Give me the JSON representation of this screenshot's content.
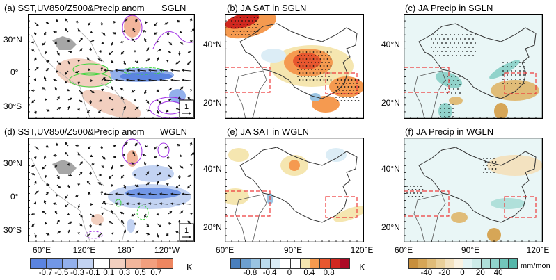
{
  "chart_data": [
    {
      "id": "a",
      "type": "heatmap",
      "title": "(a) SST,UV850/Z500&Precip anom",
      "tag": "SGLN",
      "ytick_labels": [
        "30°N",
        "0°",
        "30°S"
      ],
      "xtick_labels": [
        "60°E",
        "120°E",
        "180°",
        "120°W"
      ],
      "reference_vector": "1",
      "layers": [
        "SST anomaly (shaded)",
        "UV850 wind anomaly (vectors)",
        "Z500 anomaly (purple contours)",
        "Precip anomaly (green contours)"
      ],
      "features": {
        "warm_sst": [
          "Maritime Continent",
          "South Pacific convergence zone",
          "Northwest Pacific ~40N,170E"
        ],
        "cold_sst": [
          "Central-eastern equatorial Pacific"
        ],
        "easterly_wind_anomaly": "equatorial western Pacific"
      }
    },
    {
      "id": "b",
      "type": "heatmap",
      "title": "(b) JA SAT in SGLN",
      "ytick_labels": [
        "40°N",
        "20°N"
      ],
      "xtick_labels": [
        "60°E",
        "90°E",
        "120°E"
      ],
      "boxes": [
        {
          "lon": [
            60,
            80
          ],
          "lat": [
            20,
            35
          ]
        },
        {
          "lon": [
            105,
            122
          ],
          "lat": [
            27,
            34
          ]
        }
      ],
      "features": {
        "warm": [
          "Mongolia-NW China ~35-45N,95-105E",
          "Central Asia ~45-50N,60-70E",
          "Southeast China"
        ],
        "cool": [
          "Weak over Xinjiang",
          "Yunnan small patch"
        ]
      }
    },
    {
      "id": "c",
      "type": "heatmap",
      "title": "(c) JA Precip in SGLN",
      "ytick_labels": [
        "40°N",
        "20°N"
      ],
      "xtick_labels": [
        "60°E",
        "90°E",
        "120°E"
      ],
      "boxes": [
        {
          "lon": [
            60,
            80
          ],
          "lat": [
            20,
            35
          ]
        },
        {
          "lon": [
            105,
            122
          ],
          "lat": [
            27,
            34
          ]
        }
      ],
      "features": {
        "wet": [
          "India/Himalaya",
          "Yellow-Huai River band",
          "NW India"
        ],
        "dry": [
          "South China",
          "Indochina",
          "Bay of Bengal coast"
        ]
      }
    },
    {
      "id": "d",
      "type": "heatmap",
      "title": "(d) SST,UV850/Z500&Precip anom",
      "tag": "WGLN",
      "ytick_labels": [
        "30°N",
        "0°",
        "30°S"
      ],
      "xtick_labels": [
        "60°E",
        "120°E",
        "180°",
        "120°W"
      ],
      "reference_vector": "1",
      "layers": [
        "SST anomaly (shaded)",
        "UV850 wind anomaly (vectors)",
        "Z500 anomaly (purple contours)",
        "Precip anomaly (green contours)"
      ],
      "features": {
        "cold_sst": [
          "Central-eastern equatorial Pacific (broad)"
        ],
        "warm_sst": [
          "Small patches near 40N,170E and 15S,150E"
        ]
      }
    },
    {
      "id": "e",
      "type": "heatmap",
      "title": "(e) JA SAT in WGLN",
      "ytick_labels": [
        "40°N",
        "20°N"
      ],
      "xtick_labels": [
        "60°E",
        "90°E",
        "120°E"
      ],
      "boxes": [
        {
          "lon": [
            60,
            80
          ],
          "lat": [
            20,
            35
          ]
        },
        {
          "lon": [
            105,
            122
          ],
          "lat": [
            27,
            34
          ]
        }
      ],
      "features": {
        "warm": [
          "weak patches over central Asia and NW China"
        ],
        "cool": [
          "weak patches over Tibet, east China"
        ]
      }
    },
    {
      "id": "f",
      "type": "heatmap",
      "title": "(f) JA Precip in WGLN",
      "ytick_labels": [
        "40°N",
        "20°N"
      ],
      "xtick_labels": [
        "60°E",
        "90°E",
        "120°E"
      ],
      "boxes": [
        {
          "lon": [
            60,
            80
          ],
          "lat": [
            20,
            35
          ]
        },
        {
          "lon": [
            105,
            122
          ],
          "lat": [
            27,
            34
          ]
        }
      ],
      "features": {
        "wet": [
          "Yangtze region weak",
          "NE China"
        ],
        "dry": [
          "South China coast",
          "Bay of Bengal"
        ]
      }
    }
  ],
  "colorbars": [
    {
      "id": "sst",
      "labels": [
        "-0.7",
        "-0.5",
        "-0.3",
        "-0.1",
        "0.1",
        "0.3",
        "0.5",
        "0.7"
      ],
      "unit": "K",
      "colors": [
        "#5b84e0",
        "#7297e6",
        "#93b0ec",
        "#c3d3f2",
        "#ffffff",
        "#f2cfbf",
        "#f2b69c",
        "#f29f7e",
        "#ee8660"
      ]
    },
    {
      "id": "sat",
      "labels": [
        "-0.8",
        "-0.4",
        "0",
        "0.4",
        "0.8"
      ],
      "unit": "K",
      "colors": [
        "#4a7fbd",
        "#6d9fcf",
        "#9ac4e2",
        "#bcdcee",
        "#dcedf6",
        "#ffffff",
        "#ffffff",
        "#f5e6b0",
        "#f59a50",
        "#e8572f",
        "#d1281f",
        "#ac0a26"
      ]
    },
    {
      "id": "precip",
      "labels": [
        "-40",
        "-20",
        "0",
        "20",
        "40"
      ],
      "unit": "mm/mon",
      "colors": [
        "#c88f3c",
        "#d6a657",
        "#e0bc78",
        "#ead09a",
        "#f3e2c0",
        "#faf2e2",
        "#e4f4f4",
        "#cdebe8",
        "#b0e0da",
        "#91d3cb",
        "#72c6bb",
        "#55b7aa"
      ]
    }
  ]
}
